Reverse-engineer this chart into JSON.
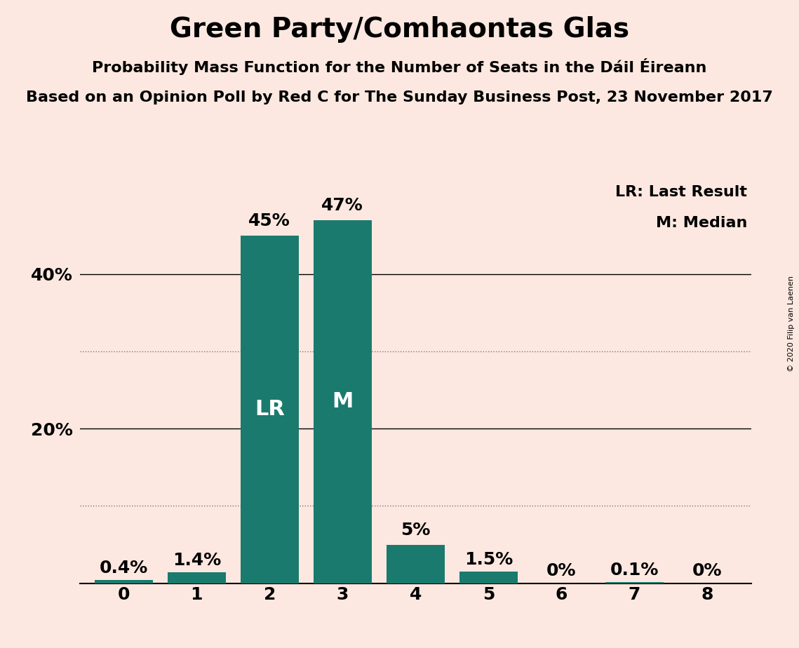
{
  "title": "Green Party/Comhaontas Glas",
  "subtitle1": "Probability Mass Function for the Number of Seats in the Dáil Éireann",
  "subtitle2": "Based on an Opinion Poll by Red C for The Sunday Business Post, 23 November 2017",
  "copyright": "© 2020 Filip van Laenen",
  "categories": [
    0,
    1,
    2,
    3,
    4,
    5,
    6,
    7,
    8
  ],
  "values": [
    0.4,
    1.4,
    45.0,
    47.0,
    5.0,
    1.5,
    0.0,
    0.1,
    0.0
  ],
  "labels": [
    "0.4%",
    "1.4%",
    "45%",
    "47%",
    "5%",
    "1.5%",
    "0%",
    "0.1%",
    "0%"
  ],
  "bar_color": "#1a7a6e",
  "background_color": "#fce8e0",
  "ylim": [
    0,
    52
  ],
  "dotted_lines": [
    10,
    30
  ],
  "solid_lines": [
    20,
    40
  ],
  "lr_bar": 2,
  "median_bar": 3,
  "legend_lr": "LR: Last Result",
  "legend_m": "M: Median",
  "title_fontsize": 28,
  "subtitle_fontsize": 16,
  "label_fontsize": 16,
  "tick_fontsize": 18,
  "bar_label_fontsize": 18,
  "bar_text_fontsize": 22
}
